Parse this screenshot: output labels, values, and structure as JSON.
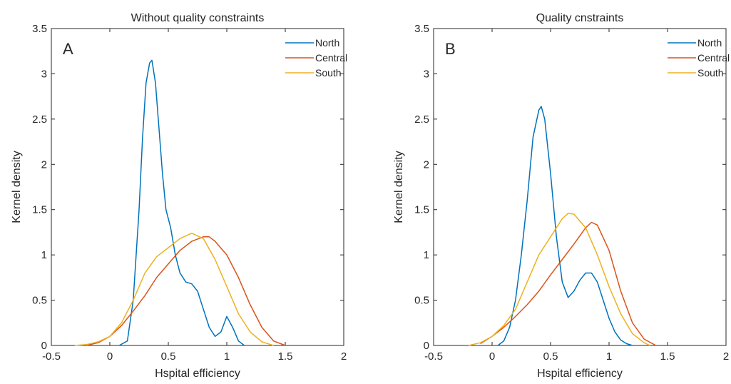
{
  "chart_data": [
    {
      "type": "line",
      "title": "Without quality constraints",
      "panel_label": "A",
      "xlabel": "Hspital efficiency",
      "ylabel": "Kernel density",
      "xlim": [
        -0.5,
        2
      ],
      "ylim": [
        0,
        3.5
      ],
      "xticks": [
        "-0.5",
        "0",
        "0.5",
        "1",
        "1.5",
        "2"
      ],
      "yticks": [
        "0",
        "0.5",
        "1",
        "1.5",
        "2",
        "2.5",
        "3",
        "3.5"
      ],
      "grid": false,
      "legend": "top-right",
      "series": [
        {
          "name": "North",
          "color": "#0072BD",
          "x": [
            0.08,
            0.15,
            0.2,
            0.25,
            0.28,
            0.31,
            0.34,
            0.36,
            0.39,
            0.42,
            0.45,
            0.48,
            0.52,
            0.56,
            0.6,
            0.65,
            0.7,
            0.75,
            0.8,
            0.85,
            0.9,
            0.95,
            1.0,
            1.05,
            1.1,
            1.15
          ],
          "y": [
            0,
            0.05,
            0.5,
            1.5,
            2.3,
            2.9,
            3.12,
            3.15,
            2.9,
            2.4,
            1.9,
            1.5,
            1.3,
            1.0,
            0.8,
            0.7,
            0.68,
            0.6,
            0.4,
            0.2,
            0.1,
            0.15,
            0.32,
            0.2,
            0.05,
            0
          ]
        },
        {
          "name": "Central",
          "color": "#D95319",
          "x": [
            -0.2,
            -0.1,
            0.0,
            0.1,
            0.2,
            0.3,
            0.4,
            0.5,
            0.6,
            0.7,
            0.8,
            0.85,
            0.9,
            1.0,
            1.1,
            1.2,
            1.3,
            1.4,
            1.5
          ],
          "y": [
            0,
            0.03,
            0.1,
            0.22,
            0.38,
            0.55,
            0.75,
            0.9,
            1.05,
            1.15,
            1.2,
            1.2,
            1.15,
            1.0,
            0.75,
            0.45,
            0.2,
            0.05,
            0
          ]
        },
        {
          "name": "South",
          "color": "#EDB120",
          "x": [
            -0.3,
            -0.2,
            -0.1,
            0.0,
            0.1,
            0.2,
            0.3,
            0.4,
            0.5,
            0.6,
            0.7,
            0.8,
            0.9,
            1.0,
            1.1,
            1.2,
            1.3,
            1.4
          ],
          "y": [
            0,
            0.01,
            0.04,
            0.1,
            0.25,
            0.5,
            0.8,
            0.98,
            1.08,
            1.18,
            1.24,
            1.18,
            0.95,
            0.65,
            0.35,
            0.15,
            0.04,
            0
          ]
        }
      ]
    },
    {
      "type": "line",
      "title": "Quality cnstraints",
      "panel_label": "B",
      "xlabel": "Hspital efficiency",
      "ylabel": "Kernel density",
      "xlim": [
        -0.5,
        2
      ],
      "ylim": [
        0,
        3.5
      ],
      "xticks": [
        "-0.5",
        "0",
        "0.5",
        "1",
        "1.5",
        "2"
      ],
      "yticks": [
        "0",
        "0.5",
        "1",
        "1.5",
        "2",
        "2.5",
        "3",
        "3.5"
      ],
      "grid": false,
      "legend": "top-right",
      "series": [
        {
          "name": "North",
          "color": "#0072BD",
          "x": [
            0.05,
            0.1,
            0.15,
            0.2,
            0.25,
            0.3,
            0.35,
            0.4,
            0.42,
            0.45,
            0.5,
            0.55,
            0.6,
            0.65,
            0.7,
            0.75,
            0.8,
            0.85,
            0.9,
            0.95,
            1.0,
            1.05,
            1.1,
            1.15,
            1.2
          ],
          "y": [
            0,
            0.05,
            0.2,
            0.5,
            1.0,
            1.6,
            2.3,
            2.6,
            2.64,
            2.5,
            1.9,
            1.2,
            0.7,
            0.53,
            0.6,
            0.72,
            0.8,
            0.8,
            0.7,
            0.5,
            0.3,
            0.15,
            0.06,
            0.02,
            0
          ]
        },
        {
          "name": "Central",
          "color": "#D95319",
          "x": [
            -0.1,
            0.0,
            0.1,
            0.2,
            0.3,
            0.4,
            0.5,
            0.6,
            0.7,
            0.8,
            0.85,
            0.9,
            1.0,
            1.1,
            1.2,
            1.3,
            1.4
          ],
          "y": [
            0.02,
            0.1,
            0.2,
            0.32,
            0.45,
            0.6,
            0.78,
            0.95,
            1.12,
            1.3,
            1.36,
            1.33,
            1.05,
            0.6,
            0.25,
            0.07,
            0
          ]
        },
        {
          "name": "South",
          "color": "#EDB120",
          "x": [
            -0.2,
            -0.1,
            0.0,
            0.1,
            0.2,
            0.3,
            0.4,
            0.5,
            0.6,
            0.65,
            0.7,
            0.8,
            0.9,
            1.0,
            1.1,
            1.2,
            1.3,
            1.35
          ],
          "y": [
            0,
            0.03,
            0.1,
            0.22,
            0.4,
            0.7,
            1.0,
            1.2,
            1.4,
            1.46,
            1.45,
            1.3,
            1.0,
            0.65,
            0.35,
            0.13,
            0.03,
            0
          ]
        }
      ]
    }
  ]
}
